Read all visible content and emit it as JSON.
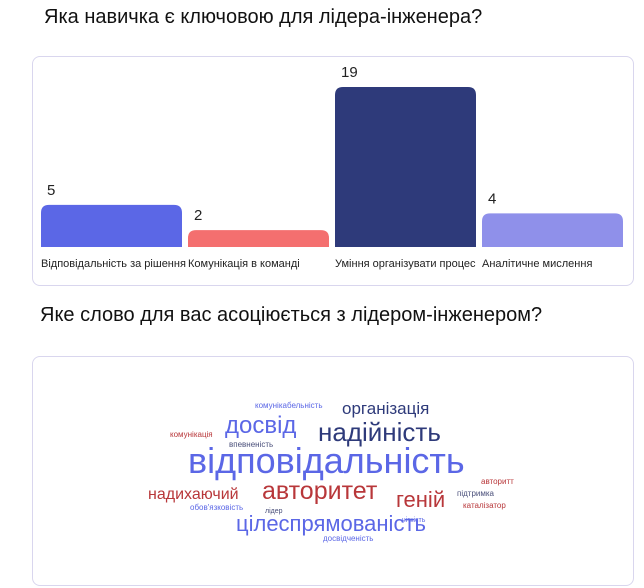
{
  "questions": {
    "q1": "Яка навичка є ключовою для лідера-інженера?",
    "q2": "Яке слово для вас асоціюється з лідером-інженером?"
  },
  "chart_data": [
    {
      "type": "bar",
      "categories": [
        "Відповідальність за рішення",
        "Комунікація в команді",
        "Уміння організувати процес",
        "Аналітичне мислення"
      ],
      "values": [
        5,
        2,
        19,
        4
      ],
      "colors": [
        "#5b67e6",
        "#f46f6f",
        "#2e3a7a",
        "#8f90ea"
      ],
      "ylim": [
        0,
        19
      ],
      "grid": false,
      "title": ""
    }
  ],
  "word_cloud": {
    "colors": {
      "blue": "#5b67e6",
      "navy": "#2e3a7a",
      "red": "#b8373a",
      "gray": "#4a4f7a"
    },
    "words": [
      {
        "text": "відповідальність",
        "weight": 10,
        "color": "blue"
      },
      {
        "text": "авторитет",
        "weight": 7,
        "color": "red"
      },
      {
        "text": "цілеспрямованість",
        "weight": 6,
        "color": "blue"
      },
      {
        "text": "надійність",
        "weight": 6,
        "color": "navy"
      },
      {
        "text": "досвід",
        "weight": 6,
        "color": "blue"
      },
      {
        "text": "геній",
        "weight": 5,
        "color": "red"
      },
      {
        "text": "організація",
        "weight": 4,
        "color": "navy"
      },
      {
        "text": "надихаючий",
        "weight": 4,
        "color": "red"
      },
      {
        "text": "комунікабельність",
        "weight": 1,
        "color": "blue"
      },
      {
        "text": "комунікація",
        "weight": 1,
        "color": "red"
      },
      {
        "text": "впевненість",
        "weight": 1,
        "color": "gray"
      },
      {
        "text": "обов'язковість",
        "weight": 1,
        "color": "blue"
      },
      {
        "text": "лідер",
        "weight": 1,
        "color": "gray"
      },
      {
        "text": "чіткість",
        "weight": 1,
        "color": "blue"
      },
      {
        "text": "авторитт",
        "weight": 1,
        "color": "red"
      },
      {
        "text": "підтримка",
        "weight": 1,
        "color": "gray"
      },
      {
        "text": "каталізатор",
        "weight": 1,
        "color": "red"
      },
      {
        "text": "досвідченість",
        "weight": 1,
        "color": "blue"
      }
    ]
  }
}
